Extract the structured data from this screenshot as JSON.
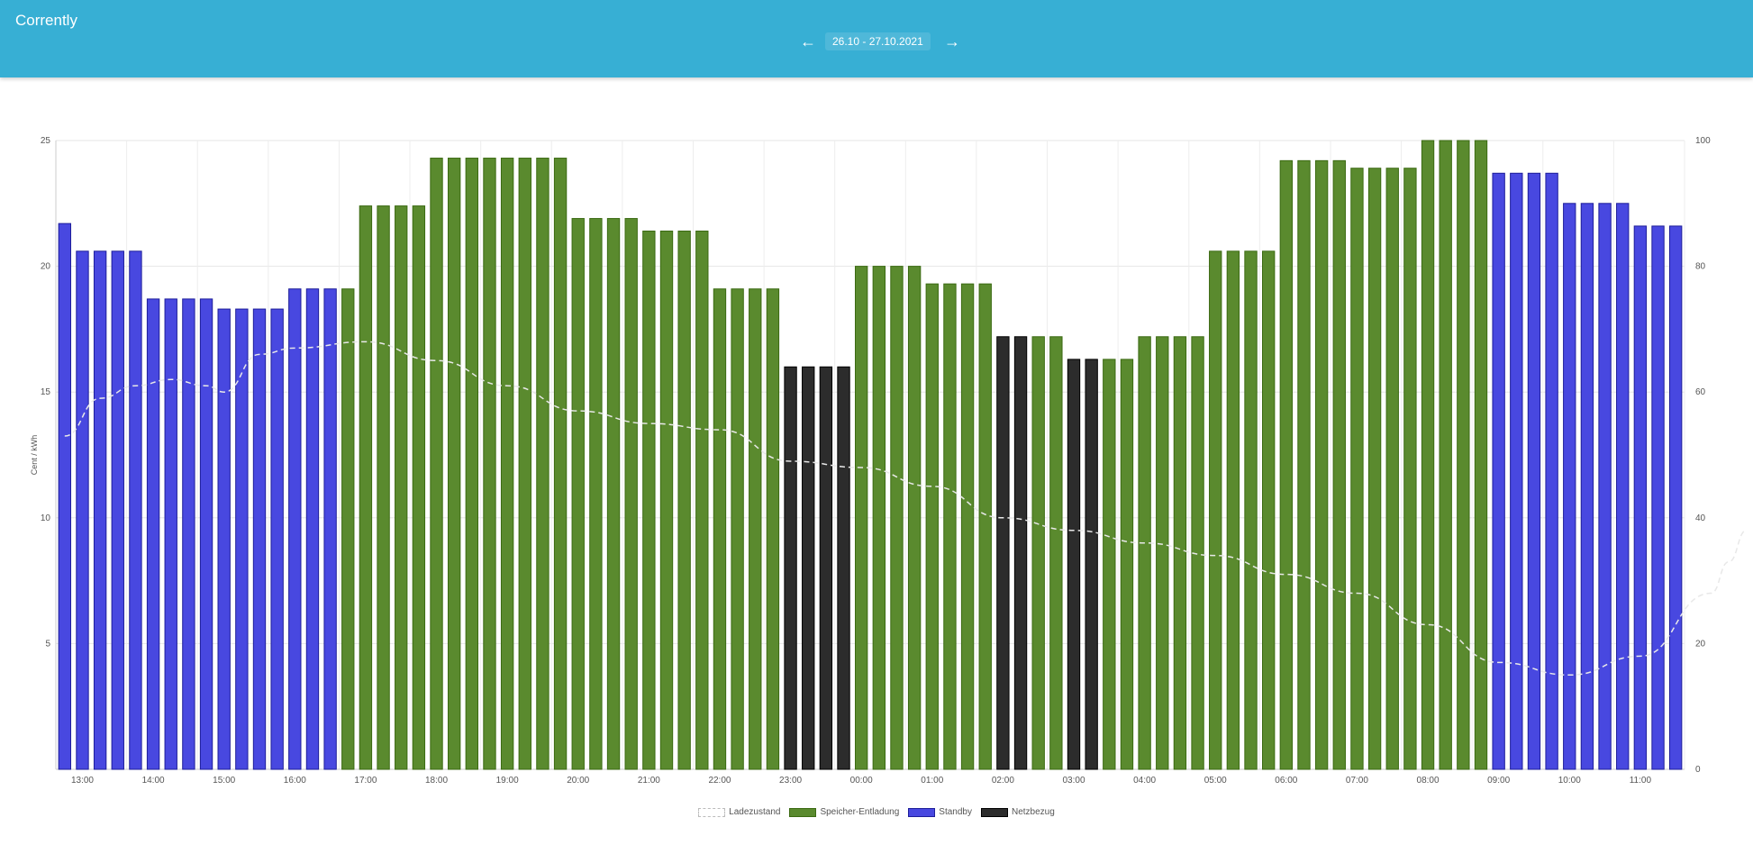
{
  "header": {
    "app_title": "Corrently",
    "date_range": "26.10 - 27.10.2021",
    "prev_icon": "arrow-left-icon",
    "next_icon": "arrow-right-icon",
    "prev_glyph": "←",
    "next_glyph": "→",
    "bar_color": "#37afd4"
  },
  "chart_data": {
    "type": "bar",
    "ylabel": "Cent / kWh",
    "ylim": [
      0,
      25
    ],
    "y_ticks": [
      5,
      10,
      15,
      20,
      25
    ],
    "y2lim": [
      0,
      100
    ],
    "y2_ticks": [
      0,
      20,
      40,
      60,
      80,
      100
    ],
    "x_tick_labels": [
      "13:00",
      "14:00",
      "15:00",
      "16:00",
      "17:00",
      "18:00",
      "19:00",
      "20:00",
      "21:00",
      "22:00",
      "23:00",
      "00:00",
      "01:00",
      "02:00",
      "03:00",
      "04:00",
      "05:00",
      "06:00",
      "07:00",
      "08:00",
      "09:00",
      "10:00",
      "11:00"
    ],
    "grid": true,
    "legend_position": "bottom",
    "series": [
      {
        "name": "Ladezustand",
        "type": "line",
        "axis": "right",
        "color": "#e8e8e8"
      },
      {
        "name": "Speicher-Entladung",
        "type": "bar",
        "color": "#5a8a2e"
      },
      {
        "name": "Standby",
        "type": "bar",
        "color": "#4848e0"
      },
      {
        "name": "Netzbezug",
        "type": "bar",
        "color": "#2c2c2c"
      }
    ],
    "bar_values": [
      21.7,
      20.6,
      20.6,
      20.6,
      20.6,
      18.7,
      18.7,
      18.7,
      18.7,
      18.3,
      18.3,
      18.3,
      18.3,
      19.1,
      19.1,
      19.1,
      19.1,
      22.4,
      22.4,
      22.4,
      22.4,
      24.3,
      24.3,
      24.3,
      24.3,
      24.3,
      24.3,
      24.3,
      24.3,
      21.9,
      21.9,
      21.9,
      21.9,
      21.4,
      21.4,
      21.4,
      21.4,
      19.1,
      19.1,
      19.1,
      19.1,
      16.0,
      16.0,
      16.0,
      16.0,
      20.0,
      20.0,
      20.0,
      20.0,
      19.3,
      19.3,
      19.3,
      19.3,
      17.2,
      17.2,
      17.2,
      17.2,
      16.3,
      16.3,
      16.3,
      16.3,
      17.2,
      17.2,
      17.2,
      17.2,
      20.6,
      20.6,
      20.6,
      20.6,
      24.2,
      24.2,
      24.2,
      24.2,
      23.9,
      23.9,
      23.9,
      23.9,
      25.0,
      25.0,
      25.0,
      25.0,
      23.7,
      23.7,
      23.7,
      23.7,
      22.5,
      22.5,
      22.5,
      22.5,
      21.6,
      21.6,
      21.6
    ],
    "bar_categories": [
      "Standby",
      "Standby",
      "Standby",
      "Standby",
      "Standby",
      "Standby",
      "Standby",
      "Standby",
      "Standby",
      "Standby",
      "Standby",
      "Standby",
      "Standby",
      "Standby",
      "Standby",
      "Standby",
      "Speicher-Entladung",
      "Speicher-Entladung",
      "Speicher-Entladung",
      "Speicher-Entladung",
      "Speicher-Entladung",
      "Speicher-Entladung",
      "Speicher-Entladung",
      "Speicher-Entladung",
      "Speicher-Entladung",
      "Speicher-Entladung",
      "Speicher-Entladung",
      "Speicher-Entladung",
      "Speicher-Entladung",
      "Speicher-Entladung",
      "Speicher-Entladung",
      "Speicher-Entladung",
      "Speicher-Entladung",
      "Speicher-Entladung",
      "Speicher-Entladung",
      "Speicher-Entladung",
      "Speicher-Entladung",
      "Speicher-Entladung",
      "Speicher-Entladung",
      "Speicher-Entladung",
      "Speicher-Entladung",
      "Netzbezug",
      "Netzbezug",
      "Netzbezug",
      "Netzbezug",
      "Speicher-Entladung",
      "Speicher-Entladung",
      "Speicher-Entladung",
      "Speicher-Entladung",
      "Speicher-Entladung",
      "Speicher-Entladung",
      "Speicher-Entladung",
      "Speicher-Entladung",
      "Netzbezug",
      "Netzbezug",
      "Speicher-Entladung",
      "Speicher-Entladung",
      "Netzbezug",
      "Netzbezug",
      "Speicher-Entladung",
      "Speicher-Entladung",
      "Speicher-Entladung",
      "Speicher-Entladung",
      "Speicher-Entladung",
      "Speicher-Entladung",
      "Speicher-Entladung",
      "Speicher-Entladung",
      "Speicher-Entladung",
      "Speicher-Entladung",
      "Speicher-Entladung",
      "Speicher-Entladung",
      "Speicher-Entladung",
      "Speicher-Entladung",
      "Speicher-Entladung",
      "Speicher-Entladung",
      "Speicher-Entladung",
      "Speicher-Entladung",
      "Speicher-Entladung",
      "Speicher-Entladung",
      "Speicher-Entladung",
      "Speicher-Entladung",
      "Standby",
      "Standby",
      "Standby",
      "Standby",
      "Standby",
      "Standby",
      "Standby",
      "Standby",
      "Standby",
      "Standby",
      "Standby",
      "Standby"
    ],
    "ladezustand_points": [
      [
        0,
        53
      ],
      [
        2,
        59
      ],
      [
        4,
        61
      ],
      [
        6,
        62
      ],
      [
        8,
        61
      ],
      [
        9,
        60
      ],
      [
        11,
        66
      ],
      [
        13,
        67
      ],
      [
        17,
        68
      ],
      [
        21,
        65
      ],
      [
        25,
        61
      ],
      [
        29,
        57
      ],
      [
        33,
        55
      ],
      [
        37,
        54
      ],
      [
        41,
        49
      ],
      [
        45,
        48
      ],
      [
        49,
        45
      ],
      [
        53,
        40
      ],
      [
        57,
        38
      ],
      [
        61,
        36
      ],
      [
        65,
        34
      ],
      [
        69,
        31
      ],
      [
        73,
        28
      ],
      [
        77,
        23
      ],
      [
        81,
        17
      ],
      [
        85,
        15
      ],
      [
        89,
        18
      ],
      [
        93,
        28
      ],
      [
        94,
        33
      ],
      [
        95,
        38
      ]
    ]
  }
}
